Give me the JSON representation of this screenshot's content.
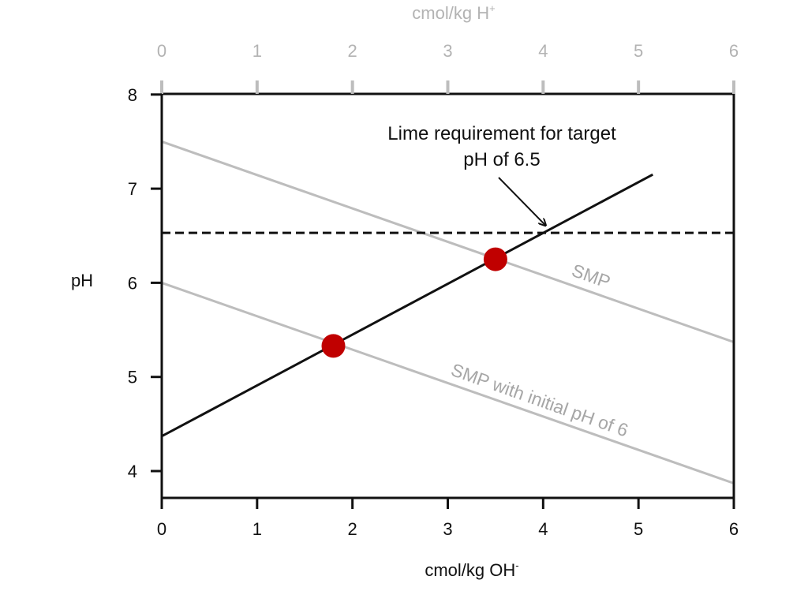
{
  "chart_data": {
    "type": "line",
    "xlabel": "cmol/kg OH",
    "xlabel_sup": "-",
    "x2label": "cmol/kg H",
    "x2label_sup": "+",
    "ylabel": "pH",
    "xlim": [
      0,
      6
    ],
    "ylim": [
      3.7,
      8
    ],
    "x_ticks": [
      "0",
      "1",
      "2",
      "3",
      "4",
      "5",
      "6"
    ],
    "x2_ticks": [
      "0",
      "1",
      "2",
      "3",
      "4",
      "5",
      "6"
    ],
    "y_ticks": [
      "4",
      "5",
      "6",
      "7",
      "8"
    ],
    "grid": false,
    "series": [
      {
        "label": "SMP",
        "color": "#bdbdbd",
        "x": [
          0,
          6
        ],
        "y": [
          7.5,
          5.37
        ]
      },
      {
        "label": "SMP with initial pH of 6",
        "color": "#bdbdbd",
        "x": [
          0,
          6
        ],
        "y": [
          6.0,
          3.87
        ]
      },
      {
        "color": "#111111",
        "x": [
          0,
          5.15
        ],
        "y": [
          4.37,
          7.15
        ]
      },
      {
        "color": "#111111",
        "dashed": true,
        "x": [
          0,
          6
        ],
        "y": [
          6.53,
          6.53
        ]
      }
    ],
    "points": [
      {
        "x": 1.8,
        "y": 5.33,
        "color": "#c00000"
      },
      {
        "x": 3.5,
        "y": 6.25,
        "color": "#c00000"
      }
    ],
    "annotation": {
      "lines": [
        "Lime requirement for target",
        "pH of 6.5"
      ],
      "arrow_target": {
        "x": 4.03,
        "y": 6.53
      }
    }
  }
}
